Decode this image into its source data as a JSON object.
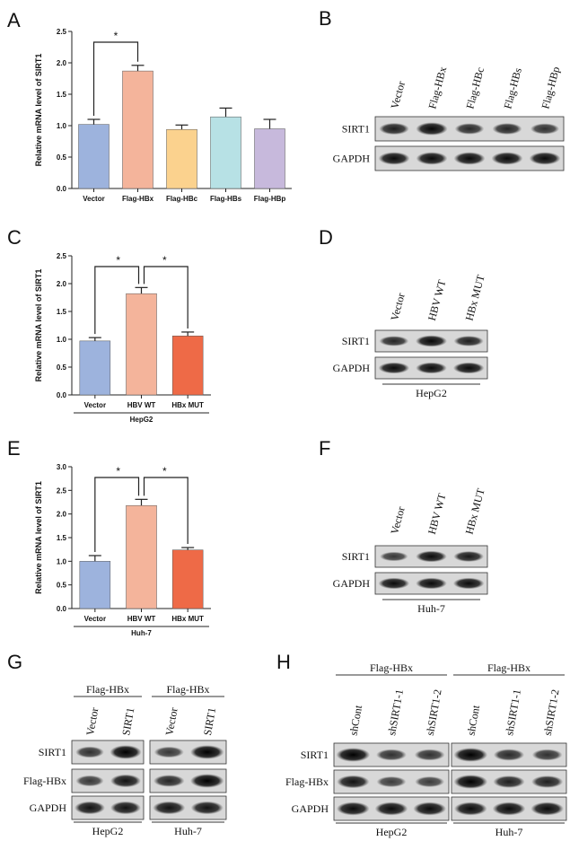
{
  "panels": {
    "A": "A",
    "B": "B",
    "C": "C",
    "D": "D",
    "E": "E",
    "F": "F",
    "G": "G",
    "H": "H"
  },
  "chart_data": [
    {
      "panel": "A",
      "type": "bar",
      "categories": [
        "Vector",
        "Flag-HBx",
        "Flag-HBc",
        "Flag-HBs",
        "Flag-HBp"
      ],
      "values": [
        1.02,
        1.87,
        0.94,
        1.14,
        0.95
      ],
      "errors": [
        0.08,
        0.09,
        0.07,
        0.14,
        0.15
      ],
      "colors": [
        "#9DB3DD",
        "#F4B49B",
        "#FBD28E",
        "#B7E1E5",
        "#C7B9DC"
      ],
      "ylabel": "Relative mRNA level of SIRT1",
      "ylim": [
        0,
        2.5
      ],
      "yticks": [
        "0.0",
        "0.5",
        "1.0",
        "1.5",
        "2.0",
        "2.5"
      ],
      "cell_label": "",
      "significance": [
        {
          "from": 0,
          "to": 1,
          "label": "*"
        }
      ]
    },
    {
      "panel": "C",
      "type": "bar",
      "categories": [
        "Vector",
        "HBV WT",
        "HBx MUT"
      ],
      "values": [
        0.97,
        1.82,
        1.06
      ],
      "errors": [
        0.06,
        0.11,
        0.07
      ],
      "colors": [
        "#9DB3DD",
        "#F4B49B",
        "#EE6A47"
      ],
      "ylabel": "Relative mRNA level of SIRT1",
      "ylim": [
        0,
        2.5
      ],
      "yticks": [
        "0.0",
        "0.5",
        "1.0",
        "1.5",
        "2.0",
        "2.5"
      ],
      "cell_label": "HepG2",
      "significance": [
        {
          "from": 0,
          "to": 1,
          "label": "*"
        },
        {
          "from": 1,
          "to": 2,
          "label": "*"
        }
      ]
    },
    {
      "panel": "E",
      "type": "bar",
      "categories": [
        "Vector",
        "HBV WT",
        "HBx MUT"
      ],
      "values": [
        1.0,
        2.18,
        1.24
      ],
      "errors": [
        0.12,
        0.13,
        0.05
      ],
      "colors": [
        "#9DB3DD",
        "#F4B49B",
        "#EE6A47"
      ],
      "ylabel": "Relative mRNA level of SIRT1",
      "ylim": [
        0,
        3.0
      ],
      "yticks": [
        "0.0",
        "0.5",
        "1.0",
        "1.5",
        "2.0",
        "2.5",
        "3.0"
      ],
      "cell_label": "Huh-7",
      "significance": [
        {
          "from": 0,
          "to": 1,
          "label": "*"
        },
        {
          "from": 1,
          "to": 2,
          "label": "*"
        }
      ]
    }
  ],
  "blots": {
    "B": {
      "lanes": [
        "Vector",
        "Flag-HBx",
        "Flag-HBc",
        "Flag-HBs",
        "Flag-HBp"
      ],
      "rows": [
        {
          "label": "SIRT1",
          "intensity": [
            0.75,
            0.95,
            0.65,
            0.7,
            0.6
          ]
        },
        {
          "label": "GAPDH",
          "intensity": [
            0.9,
            0.9,
            0.9,
            0.9,
            0.9
          ]
        }
      ],
      "cell_label": ""
    },
    "D": {
      "lanes": [
        "Vector",
        "HBV WT",
        "HBx MUT"
      ],
      "rows": [
        {
          "label": "SIRT1",
          "intensity": [
            0.7,
            0.95,
            0.75
          ]
        },
        {
          "label": "GAPDH",
          "intensity": [
            0.9,
            0.9,
            0.9
          ]
        }
      ],
      "cell_label": "HepG2"
    },
    "F": {
      "lanes": [
        "Vector",
        "HBV WT",
        "HBx MUT"
      ],
      "rows": [
        {
          "label": "SIRT1",
          "intensity": [
            0.55,
            0.9,
            0.8
          ]
        },
        {
          "label": "GAPDH",
          "intensity": [
            0.9,
            0.9,
            0.9
          ]
        }
      ],
      "cell_label": "Huh-7"
    },
    "G": {
      "groups": [
        {
          "header": "Flag-HBx",
          "cell": "HepG2",
          "lanes": [
            "Vector",
            "SIRT1"
          ],
          "intensities": [
            [
              0.6,
              1.0
            ],
            [
              0.55,
              0.85
            ],
            [
              0.85,
              0.85
            ]
          ]
        },
        {
          "header": "Flag-HBx",
          "cell": "Huh-7",
          "lanes": [
            "Vector",
            "SIRT1"
          ],
          "intensities": [
            [
              0.55,
              1.0
            ],
            [
              0.7,
              1.0
            ],
            [
              0.85,
              0.85
            ]
          ]
        }
      ],
      "row_labels": [
        "SIRT1",
        "Flag-HBx",
        "GAPDH"
      ]
    },
    "H": {
      "groups": [
        {
          "header": "Flag-HBx",
          "cell": "HepG2",
          "lanes": [
            "shCont",
            "shSIRT1-1",
            "shSIRT1-2"
          ],
          "intensities": [
            [
              1.0,
              0.6,
              0.6
            ],
            [
              0.85,
              0.5,
              0.5
            ],
            [
              0.9,
              0.9,
              0.9
            ]
          ]
        },
        {
          "header": "Flag-HBx",
          "cell": "Huh-7",
          "lanes": [
            "shCont",
            "shSIRT1-1",
            "shSIRT1-2"
          ],
          "intensities": [
            [
              1.0,
              0.65,
              0.6
            ],
            [
              1.0,
              0.75,
              0.75
            ],
            [
              0.9,
              0.9,
              0.9
            ]
          ]
        }
      ],
      "row_labels": [
        "SIRT1",
        "Flag-HBx",
        "GAPDH"
      ]
    }
  }
}
